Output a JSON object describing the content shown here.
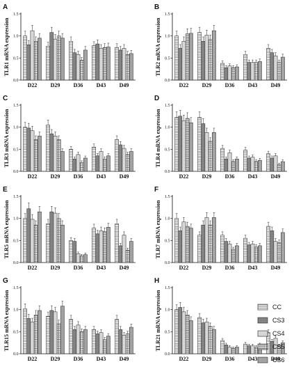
{
  "figure": {
    "legend": [
      {
        "name": "CC",
        "pattern": "hlines"
      },
      {
        "name": "CS3",
        "pattern": "dark"
      },
      {
        "name": "CS4",
        "pattern": "light"
      },
      {
        "name": "CS5",
        "pattern": "grid"
      },
      {
        "name": "CS6",
        "pattern": "gray"
      }
    ]
  },
  "chart_data": [
    {
      "type": "bar",
      "panel": "A",
      "ylabel": "TLR1 mRNA expression",
      "categories": [
        "D22",
        "D29",
        "D36",
        "D43",
        "D49"
      ],
      "yticks": [
        "0.0",
        "0.5",
        "1.0",
        "1.5"
      ],
      "ylim": [
        0,
        1.5
      ],
      "series": [
        {
          "name": "CC",
          "values": [
            1.0,
            0.77,
            0.88,
            0.78,
            0.74
          ]
        },
        {
          "name": "CS3",
          "values": [
            0.8,
            1.08,
            0.62,
            0.82,
            0.68
          ]
        },
        {
          "name": "CS4",
          "values": [
            1.12,
            0.93,
            0.58,
            0.72,
            0.72
          ]
        },
        {
          "name": "CS5",
          "values": [
            0.88,
            1.0,
            0.45,
            0.74,
            0.58
          ]
        },
        {
          "name": "CS6",
          "values": [
            0.95,
            0.95,
            0.68,
            0.75,
            0.6
          ]
        }
      ]
    },
    {
      "type": "bar",
      "panel": "B",
      "ylabel": "TLR2 mRNA expression",
      "categories": [
        "D22",
        "D29",
        "D36",
        "D43",
        "D49"
      ],
      "yticks": [
        "0.0",
        "0.5",
        "1.0",
        "1.5"
      ],
      "ylim": [
        0,
        1.5
      ],
      "series": [
        {
          "name": "CC",
          "values": [
            1.0,
            1.08,
            0.38,
            0.58,
            0.72
          ]
        },
        {
          "name": "CS3",
          "values": [
            0.72,
            0.88,
            0.28,
            0.4,
            0.62
          ]
        },
        {
          "name": "CS4",
          "values": [
            0.88,
            1.02,
            0.32,
            0.4,
            0.55
          ]
        },
        {
          "name": "CS5",
          "values": [
            1.05,
            0.92,
            0.28,
            0.4,
            0.4
          ]
        },
        {
          "name": "CS6",
          "values": [
            1.06,
            1.12,
            0.3,
            0.42,
            0.52
          ]
        }
      ]
    },
    {
      "type": "bar",
      "panel": "C",
      "ylabel": "TLR3 mRNA expression",
      "categories": [
        "D22",
        "D29",
        "D36",
        "D43",
        "D49"
      ],
      "yticks": [
        "0.0",
        "0.5",
        "1.0",
        "1.5"
      ],
      "ylim": [
        0,
        1.5
      ],
      "series": [
        {
          "name": "CC",
          "values": [
            1.0,
            1.05,
            0.5,
            0.55,
            0.72
          ]
        },
        {
          "name": "CS3",
          "values": [
            0.98,
            0.85,
            0.28,
            0.35,
            0.6
          ]
        },
        {
          "name": "CS4",
          "values": [
            0.92,
            0.8,
            0.38,
            0.45,
            0.52
          ]
        },
        {
          "name": "CS5",
          "values": [
            0.72,
            0.72,
            0.2,
            0.28,
            0.38
          ]
        },
        {
          "name": "CS6",
          "values": [
            0.8,
            0.45,
            0.3,
            0.35,
            0.45
          ]
        }
      ]
    },
    {
      "type": "bar",
      "panel": "D",
      "ylabel": "TLR4 mRNA expression",
      "categories": [
        "D22",
        "D29",
        "D36",
        "D43",
        "D49"
      ],
      "yticks": [
        "0.0",
        "0.5",
        "1.0",
        "1.5"
      ],
      "ylim": [
        0,
        1.5
      ],
      "series": [
        {
          "name": "CC",
          "values": [
            1.22,
            1.22,
            0.52,
            0.48,
            0.4
          ]
        },
        {
          "name": "CS3",
          "values": [
            1.25,
            1.08,
            0.28,
            0.3,
            0.3
          ]
        },
        {
          "name": "CS4",
          "values": [
            1.15,
            0.88,
            0.42,
            0.32,
            0.35
          ]
        },
        {
          "name": "CS5",
          "values": [
            1.2,
            0.68,
            0.22,
            0.22,
            0.15
          ]
        },
        {
          "name": "CS6",
          "values": [
            1.1,
            0.88,
            0.28,
            0.25,
            0.22
          ]
        }
      ]
    },
    {
      "type": "bar",
      "panel": "E",
      "ylabel": "TLR5 mRNA expression",
      "categories": [
        "D22",
        "D29",
        "D36",
        "D43",
        "D49"
      ],
      "yticks": [
        "0.0",
        "0.5",
        "1.0",
        "1.5"
      ],
      "ylim": [
        0,
        1.5
      ],
      "series": [
        {
          "name": "CC",
          "values": [
            1.0,
            0.88,
            0.5,
            0.78,
            0.88
          ]
        },
        {
          "name": "CS3",
          "values": [
            1.22,
            1.15,
            0.48,
            0.65,
            0.38
          ]
        },
        {
          "name": "CS4",
          "values": [
            0.98,
            1.12,
            0.2,
            0.72,
            0.62
          ]
        },
        {
          "name": "CS5",
          "values": [
            0.85,
            1.0,
            0.15,
            0.7,
            0.28
          ]
        },
        {
          "name": "CS6",
          "values": [
            1.15,
            0.85,
            0.18,
            0.8,
            0.48
          ]
        }
      ]
    },
    {
      "type": "bar",
      "panel": "F",
      "ylabel": "TLR7 mRNA expression",
      "categories": [
        "D22",
        "D29",
        "D36",
        "D43",
        "D49"
      ],
      "yticks": [
        "0.0",
        "0.5",
        "1.0",
        "1.5"
      ],
      "ylim": [
        0,
        1.5
      ],
      "series": [
        {
          "name": "CC",
          "values": [
            1.0,
            0.62,
            0.62,
            0.55,
            0.82
          ]
        },
        {
          "name": "CS3",
          "values": [
            0.72,
            0.85,
            0.48,
            0.4,
            0.72
          ]
        },
        {
          "name": "CS4",
          "values": [
            0.92,
            1.02,
            0.42,
            0.42,
            0.48
          ]
        },
        {
          "name": "CS5",
          "values": [
            0.82,
            0.85,
            0.3,
            0.35,
            0.45
          ]
        },
        {
          "name": "CS6",
          "values": [
            0.78,
            1.02,
            0.38,
            0.38,
            0.68
          ]
        }
      ]
    },
    {
      "type": "bar",
      "panel": "G",
      "ylabel": "TLR15 mRNA expression",
      "categories": [
        "D22",
        "D29",
        "D36",
        "D43",
        "D49"
      ],
      "yticks": [
        "0.0",
        "0.5",
        "1.0",
        "1.5"
      ],
      "ylim": [
        0,
        1.5
      ],
      "series": [
        {
          "name": "CC",
          "values": [
            1.02,
            0.85,
            0.78,
            0.55,
            0.78
          ]
        },
        {
          "name": "CS3",
          "values": [
            0.8,
            0.98,
            0.55,
            0.45,
            0.55
          ]
        },
        {
          "name": "CS4",
          "values": [
            0.72,
            0.95,
            0.65,
            0.48,
            0.42
          ]
        },
        {
          "name": "CS5",
          "values": [
            0.88,
            0.68,
            0.5,
            0.32,
            0.45
          ]
        },
        {
          "name": "CS6",
          "values": [
            0.98,
            1.08,
            0.55,
            0.4,
            0.6
          ]
        }
      ]
    },
    {
      "type": "bar",
      "panel": "H",
      "ylabel": "TLR21 mRNA expression",
      "categories": [
        "D22",
        "D29",
        "D36",
        "D43",
        "D49"
      ],
      "yticks": [
        "0.0",
        "0.5",
        "1.0",
        "1.5"
      ],
      "ylim": [
        0,
        1.5
      ],
      "series": [
        {
          "name": "CC",
          "values": [
            1.0,
            0.82,
            0.3,
            0.22,
            0.48
          ]
        },
        {
          "name": "CS3",
          "values": [
            1.05,
            0.7,
            0.2,
            0.18,
            0.28
          ]
        },
        {
          "name": "CS4",
          "values": [
            0.95,
            0.72,
            0.15,
            0.18,
            0.35
          ]
        },
        {
          "name": "CS5",
          "values": [
            0.88,
            0.62,
            0.12,
            0.15,
            0.18
          ]
        },
        {
          "name": "CS6",
          "values": [
            0.75,
            0.55,
            0.15,
            0.2,
            0.25
          ]
        }
      ]
    }
  ]
}
